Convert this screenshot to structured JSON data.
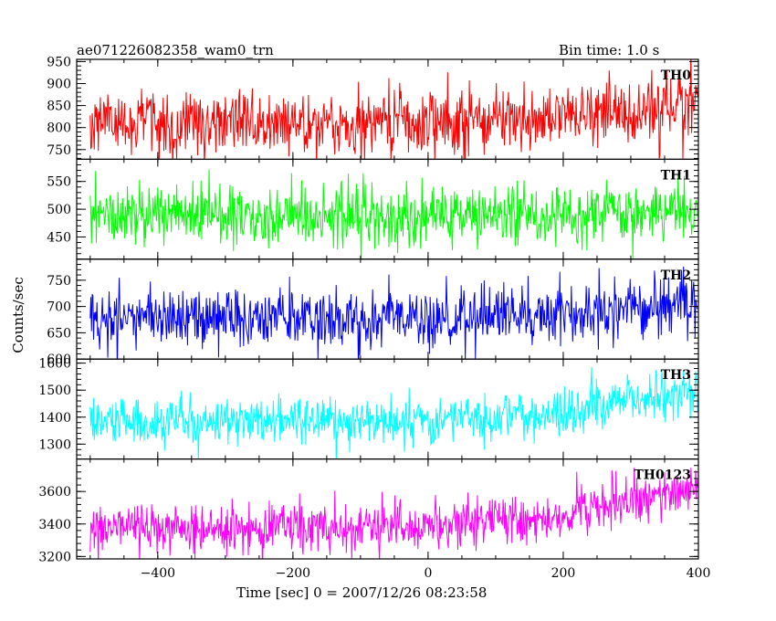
{
  "header": {
    "title": "ae071226082358_wam0_trn",
    "bin_time": "Bin time: 1.0 s"
  },
  "chart_data": {
    "type": "line",
    "title": "ae071226082358_wam0_trn",
    "xlabel": "Time [sec] 0 = 2007/12/26 08:23:58",
    "ylabel": "Counts/sec",
    "xlim": [
      -520,
      400
    ],
    "x_ticks": [
      -400,
      -200,
      0,
      200,
      400
    ],
    "x_tick_labels": [
      "−400",
      "−200",
      "0",
      "200",
      "400"
    ],
    "grid": false,
    "series": [
      {
        "name": "TH0",
        "color": "#ff0000",
        "ylim": [
          728,
          955
        ],
        "y_ticks": [
          750,
          800,
          850,
          900,
          950
        ],
        "x_start": -500,
        "x_end": 399,
        "step": 1,
        "baseline": [
          [
            -500,
            810
          ],
          [
            0,
            810
          ],
          [
            250,
            830
          ],
          [
            399,
            855
          ]
        ],
        "noise_sd": 38,
        "description_points": [
          [
            -500,
            820
          ],
          [
            -250,
            815
          ],
          [
            0,
            812
          ],
          [
            200,
            825
          ],
          [
            300,
            840
          ],
          [
            399,
            855
          ]
        ]
      },
      {
        "name": "TH1",
        "color": "#00ff00",
        "ylim": [
          410,
          590
        ],
        "y_ticks": [
          450,
          500,
          550
        ],
        "x_start": -500,
        "x_end": 399,
        "step": 1,
        "baseline": [
          [
            -500,
            490
          ],
          [
            0,
            490
          ],
          [
            399,
            495
          ]
        ],
        "noise_sd": 28
      },
      {
        "name": "TH2",
        "color": "#0000ff",
        "ylim": [
          600,
          790
        ],
        "y_ticks": [
          600,
          650,
          700,
          750
        ],
        "x_start": -500,
        "x_end": 399,
        "step": 1,
        "baseline": [
          [
            -500,
            680
          ],
          [
            0,
            675
          ],
          [
            250,
            690
          ],
          [
            399,
            705
          ]
        ],
        "noise_sd": 28
      },
      {
        "name": "TH3",
        "color": "#00ffff",
        "ylim": [
          1245,
          1615
        ],
        "y_ticks": [
          1300,
          1400,
          1500,
          1600
        ],
        "x_start": -500,
        "x_end": 399,
        "step": 1,
        "baseline": [
          [
            -500,
            1380
          ],
          [
            0,
            1385
          ],
          [
            200,
            1420
          ],
          [
            399,
            1510
          ]
        ],
        "noise_sd": 45
      },
      {
        "name": "TH0123",
        "color": "#ff00ff",
        "ylim": [
          3185,
          3800
        ],
        "y_ticks": [
          3200,
          3400,
          3600
        ],
        "x_start": -500,
        "x_end": 399,
        "step": 1,
        "baseline": [
          [
            -500,
            3360
          ],
          [
            0,
            3380
          ],
          [
            200,
            3450
          ],
          [
            399,
            3620
          ]
        ],
        "noise_sd": 75
      }
    ]
  }
}
